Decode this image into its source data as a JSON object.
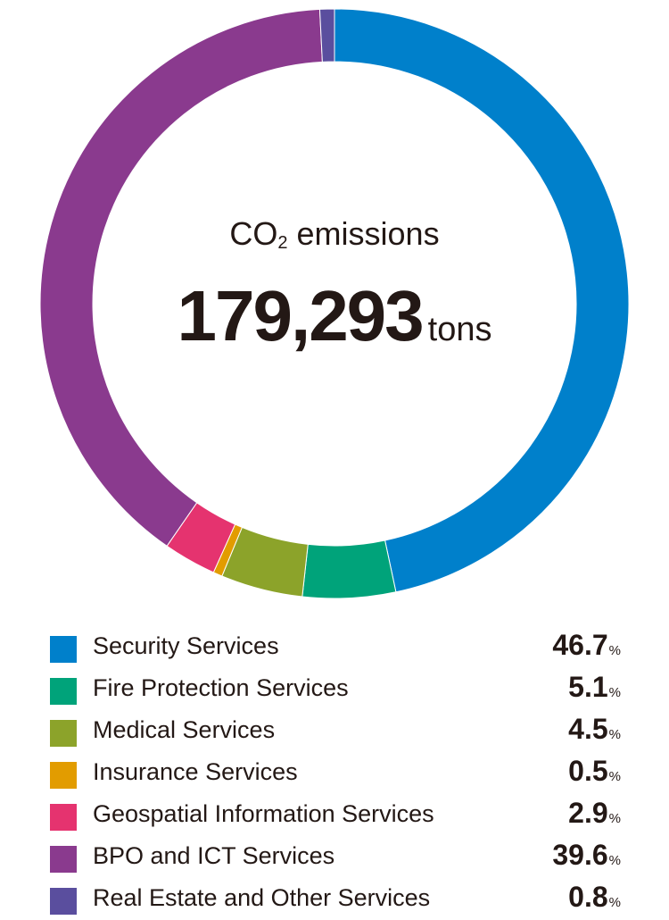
{
  "chart_data": {
    "type": "pie",
    "title": "",
    "center": {
      "title_prefix": "CO",
      "title_subscript": "2",
      "title_suffix": " emissions",
      "value": "179,293",
      "unit": "tons"
    },
    "categories": [
      "Security Services",
      "Fire Protection Services",
      "Medical Services",
      "Insurance Services",
      "Geospatial Information Services",
      "BPO and ICT Services",
      "Real Estate and Other Services"
    ],
    "values": [
      46.7,
      5.1,
      4.5,
      0.5,
      2.9,
      39.6,
      0.8
    ],
    "value_labels": [
      "46.7",
      "5.1",
      "4.5",
      "0.5",
      "2.9",
      "39.6",
      "0.8"
    ],
    "value_unit": "%",
    "colors": [
      "#0080cb",
      "#00a37a",
      "#8ca32a",
      "#e29c00",
      "#e5336f",
      "#8a3a8e",
      "#5a4e9e"
    ],
    "legend_placement": "bottom"
  }
}
